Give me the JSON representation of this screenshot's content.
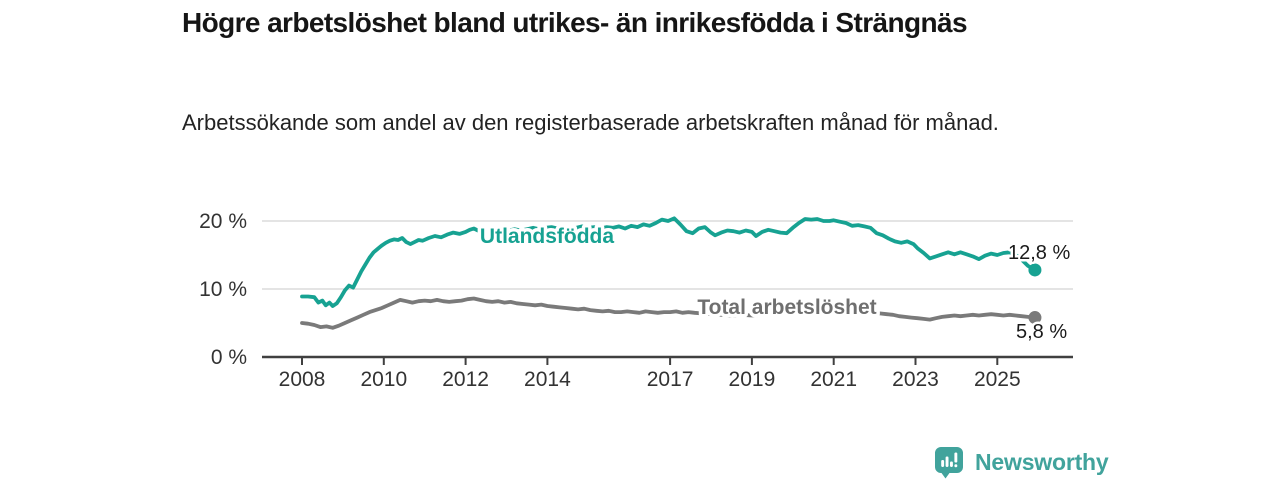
{
  "title": "Högre arbetslöshet bland utrikes- än inrikesfödda i Strängnäs",
  "subtitle": "Arbetssökande som andel av den registerbaserade arbetskraften månad för månad.",
  "branding": {
    "wordmark": "Newsworthy",
    "color": "#41a39c",
    "icon": "bar-chart-speech-bubble-icon"
  },
  "colors": {
    "series_utlandsfodda": "#17a292",
    "series_total": "#7a7a7a",
    "grid": "#dcdcdc",
    "axis": "#404040",
    "tick_text": "#333333",
    "value_text": "#1a1a1a"
  },
  "chart_data": {
    "type": "line",
    "title": "Högre arbetslöshet bland utrikes- än inrikesfödda i Strängnäs",
    "subtitle": "Arbetssökande som andel av den registerbaserade arbetskraften månad för månad.",
    "unit": "%",
    "legend": "inline-labels",
    "grid": "horizontal-only",
    "x_axis": {
      "ticks": [
        2008,
        2010,
        2012,
        2014,
        2017,
        2019,
        2021,
        2023,
        2025
      ],
      "range": [
        2008,
        2025.92
      ]
    },
    "y_axis": {
      "ticks": [
        {
          "value": 20,
          "label": "20 %"
        },
        {
          "value": 10,
          "label": "10 %"
        },
        {
          "value": 0,
          "label": "0 %"
        }
      ],
      "gridlines": [
        20,
        10
      ],
      "range": [
        0,
        21
      ]
    },
    "series": [
      {
        "name": "Utlandsfödda",
        "color": "#17a292",
        "end_value": 12.8,
        "end_label": "12,8 %",
        "points": [
          [
            2008.0,
            8.9
          ],
          [
            2008.15,
            8.9
          ],
          [
            2008.3,
            8.8
          ],
          [
            2008.4,
            8.0
          ],
          [
            2008.5,
            8.3
          ],
          [
            2008.58,
            7.6
          ],
          [
            2008.67,
            8.0
          ],
          [
            2008.75,
            7.5
          ],
          [
            2008.85,
            7.9
          ],
          [
            2008.95,
            8.8
          ],
          [
            2009.05,
            9.8
          ],
          [
            2009.15,
            10.5
          ],
          [
            2009.25,
            10.2
          ],
          [
            2009.35,
            11.4
          ],
          [
            2009.45,
            12.6
          ],
          [
            2009.55,
            13.6
          ],
          [
            2009.65,
            14.6
          ],
          [
            2009.75,
            15.4
          ],
          [
            2009.85,
            15.9
          ],
          [
            2009.95,
            16.4
          ],
          [
            2010.05,
            16.8
          ],
          [
            2010.15,
            17.1
          ],
          [
            2010.25,
            17.3
          ],
          [
            2010.35,
            17.2
          ],
          [
            2010.45,
            17.5
          ],
          [
            2010.55,
            16.9
          ],
          [
            2010.65,
            16.6
          ],
          [
            2010.75,
            16.9
          ],
          [
            2010.85,
            17.2
          ],
          [
            2010.95,
            17.1
          ],
          [
            2011.1,
            17.5
          ],
          [
            2011.25,
            17.8
          ],
          [
            2011.4,
            17.6
          ],
          [
            2011.55,
            18.0
          ],
          [
            2011.7,
            18.3
          ],
          [
            2011.85,
            18.1
          ],
          [
            2012.0,
            18.4
          ],
          [
            2012.1,
            18.7
          ],
          [
            2012.2,
            18.9
          ],
          [
            2012.3,
            18.6
          ],
          [
            2012.45,
            18.1
          ],
          [
            2012.6,
            18.3
          ],
          [
            2012.75,
            18.5
          ],
          [
            2012.9,
            18.4
          ],
          [
            2013.05,
            18.6
          ],
          [
            2013.2,
            18.8
          ],
          [
            2013.35,
            18.6
          ],
          [
            2013.5,
            18.8
          ],
          [
            2013.65,
            19.0
          ],
          [
            2013.8,
            18.8
          ],
          [
            2013.95,
            19.0
          ],
          [
            2014.1,
            19.1
          ],
          [
            2014.25,
            18.9
          ],
          [
            2014.4,
            19.1
          ],
          [
            2014.55,
            18.9
          ],
          [
            2014.7,
            19.0
          ],
          [
            2014.85,
            19.2
          ],
          [
            2015.0,
            19.0
          ],
          [
            2015.15,
            19.1
          ],
          [
            2015.3,
            18.9
          ],
          [
            2015.45,
            19.1
          ],
          [
            2015.6,
            19.0
          ],
          [
            2015.75,
            19.2
          ],
          [
            2015.9,
            18.9
          ],
          [
            2016.05,
            19.3
          ],
          [
            2016.2,
            19.1
          ],
          [
            2016.35,
            19.5
          ],
          [
            2016.5,
            19.3
          ],
          [
            2016.65,
            19.7
          ],
          [
            2016.8,
            20.2
          ],
          [
            2016.95,
            20.0
          ],
          [
            2017.1,
            20.4
          ],
          [
            2017.25,
            19.5
          ],
          [
            2017.4,
            18.5
          ],
          [
            2017.55,
            18.2
          ],
          [
            2017.7,
            18.9
          ],
          [
            2017.85,
            19.1
          ],
          [
            2018.0,
            18.3
          ],
          [
            2018.1,
            17.9
          ],
          [
            2018.25,
            18.3
          ],
          [
            2018.4,
            18.6
          ],
          [
            2018.55,
            18.5
          ],
          [
            2018.7,
            18.3
          ],
          [
            2018.85,
            18.6
          ],
          [
            2019.0,
            18.4
          ],
          [
            2019.1,
            17.8
          ],
          [
            2019.25,
            18.4
          ],
          [
            2019.4,
            18.7
          ],
          [
            2019.55,
            18.5
          ],
          [
            2019.7,
            18.3
          ],
          [
            2019.85,
            18.2
          ],
          [
            2020.0,
            19.0
          ],
          [
            2020.15,
            19.7
          ],
          [
            2020.3,
            20.3
          ],
          [
            2020.45,
            20.2
          ],
          [
            2020.6,
            20.3
          ],
          [
            2020.75,
            20.0
          ],
          [
            2020.9,
            20.0
          ],
          [
            2021.0,
            20.1
          ],
          [
            2021.15,
            19.9
          ],
          [
            2021.3,
            19.7
          ],
          [
            2021.45,
            19.3
          ],
          [
            2021.6,
            19.4
          ],
          [
            2021.75,
            19.2
          ],
          [
            2021.9,
            19.0
          ],
          [
            2022.05,
            18.2
          ],
          [
            2022.2,
            17.9
          ],
          [
            2022.35,
            17.4
          ],
          [
            2022.5,
            17.0
          ],
          [
            2022.65,
            16.8
          ],
          [
            2022.8,
            17.0
          ],
          [
            2022.95,
            16.6
          ],
          [
            2023.05,
            16.0
          ],
          [
            2023.2,
            15.3
          ],
          [
            2023.35,
            14.5
          ],
          [
            2023.5,
            14.8
          ],
          [
            2023.65,
            15.1
          ],
          [
            2023.8,
            15.4
          ],
          [
            2023.95,
            15.1
          ],
          [
            2024.1,
            15.4
          ],
          [
            2024.25,
            15.1
          ],
          [
            2024.4,
            14.8
          ],
          [
            2024.55,
            14.4
          ],
          [
            2024.7,
            14.9
          ],
          [
            2024.85,
            15.2
          ],
          [
            2025.0,
            15.0
          ],
          [
            2025.15,
            15.3
          ],
          [
            2025.3,
            15.4
          ],
          [
            2025.45,
            15.0
          ],
          [
            2025.6,
            14.3
          ],
          [
            2025.75,
            13.4
          ],
          [
            2025.92,
            12.8
          ]
        ]
      },
      {
        "name": "Total arbetslöshet",
        "color": "#7a7a7a",
        "end_value": 5.8,
        "end_label": "5,8 %",
        "points": [
          [
            2008.0,
            5.0
          ],
          [
            2008.15,
            4.9
          ],
          [
            2008.3,
            4.7
          ],
          [
            2008.45,
            4.4
          ],
          [
            2008.6,
            4.5
          ],
          [
            2008.75,
            4.3
          ],
          [
            2008.9,
            4.6
          ],
          [
            2009.05,
            5.0
          ],
          [
            2009.2,
            5.4
          ],
          [
            2009.35,
            5.8
          ],
          [
            2009.5,
            6.2
          ],
          [
            2009.65,
            6.6
          ],
          [
            2009.8,
            6.9
          ],
          [
            2009.95,
            7.2
          ],
          [
            2010.1,
            7.6
          ],
          [
            2010.25,
            8.0
          ],
          [
            2010.4,
            8.4
          ],
          [
            2010.55,
            8.2
          ],
          [
            2010.7,
            8.0
          ],
          [
            2010.85,
            8.2
          ],
          [
            2011.0,
            8.3
          ],
          [
            2011.15,
            8.2
          ],
          [
            2011.3,
            8.4
          ],
          [
            2011.45,
            8.2
          ],
          [
            2011.6,
            8.1
          ],
          [
            2011.75,
            8.2
          ],
          [
            2011.9,
            8.3
          ],
          [
            2012.05,
            8.5
          ],
          [
            2012.2,
            8.6
          ],
          [
            2012.35,
            8.4
          ],
          [
            2012.5,
            8.2
          ],
          [
            2012.65,
            8.1
          ],
          [
            2012.8,
            8.2
          ],
          [
            2012.95,
            8.0
          ],
          [
            2013.1,
            8.1
          ],
          [
            2013.25,
            7.9
          ],
          [
            2013.4,
            7.8
          ],
          [
            2013.55,
            7.7
          ],
          [
            2013.7,
            7.6
          ],
          [
            2013.85,
            7.7
          ],
          [
            2014.0,
            7.5
          ],
          [
            2014.15,
            7.4
          ],
          [
            2014.3,
            7.3
          ],
          [
            2014.45,
            7.2
          ],
          [
            2014.6,
            7.1
          ],
          [
            2014.75,
            7.0
          ],
          [
            2014.9,
            7.1
          ],
          [
            2015.05,
            6.9
          ],
          [
            2015.2,
            6.8
          ],
          [
            2015.35,
            6.7
          ],
          [
            2015.5,
            6.8
          ],
          [
            2015.65,
            6.6
          ],
          [
            2015.8,
            6.6
          ],
          [
            2015.95,
            6.7
          ],
          [
            2016.1,
            6.6
          ],
          [
            2016.25,
            6.5
          ],
          [
            2016.4,
            6.7
          ],
          [
            2016.55,
            6.6
          ],
          [
            2016.7,
            6.5
          ],
          [
            2016.85,
            6.6
          ],
          [
            2017.0,
            6.6
          ],
          [
            2017.15,
            6.7
          ],
          [
            2017.3,
            6.5
          ],
          [
            2017.45,
            6.6
          ],
          [
            2017.6,
            6.5
          ],
          [
            2017.8,
            6.4
          ],
          [
            2018.0,
            6.3
          ],
          [
            2018.25,
            6.2
          ],
          [
            2018.5,
            6.1
          ],
          [
            2018.75,
            6.2
          ],
          [
            2019.0,
            6.1
          ],
          [
            2019.25,
            6.2
          ],
          [
            2019.5,
            6.3
          ],
          [
            2019.75,
            6.5
          ],
          [
            2020.0,
            6.8
          ],
          [
            2020.25,
            7.6
          ],
          [
            2020.5,
            8.0
          ],
          [
            2020.75,
            7.9
          ],
          [
            2021.0,
            7.7
          ],
          [
            2021.25,
            7.4
          ],
          [
            2021.5,
            7.1
          ],
          [
            2021.75,
            6.8
          ],
          [
            2022.0,
            6.5
          ],
          [
            2022.15,
            6.4
          ],
          [
            2022.3,
            6.3
          ],
          [
            2022.45,
            6.2
          ],
          [
            2022.6,
            6.0
          ],
          [
            2022.75,
            5.9
          ],
          [
            2022.9,
            5.8
          ],
          [
            2023.05,
            5.7
          ],
          [
            2023.2,
            5.6
          ],
          [
            2023.35,
            5.5
          ],
          [
            2023.5,
            5.7
          ],
          [
            2023.65,
            5.9
          ],
          [
            2023.8,
            6.0
          ],
          [
            2023.95,
            6.1
          ],
          [
            2024.1,
            6.0
          ],
          [
            2024.25,
            6.1
          ],
          [
            2024.4,
            6.2
          ],
          [
            2024.55,
            6.1
          ],
          [
            2024.7,
            6.2
          ],
          [
            2024.85,
            6.3
          ],
          [
            2025.0,
            6.2
          ],
          [
            2025.15,
            6.1
          ],
          [
            2025.3,
            6.2
          ],
          [
            2025.45,
            6.1
          ],
          [
            2025.6,
            6.0
          ],
          [
            2025.75,
            5.9
          ],
          [
            2025.92,
            5.8
          ]
        ]
      }
    ]
  }
}
